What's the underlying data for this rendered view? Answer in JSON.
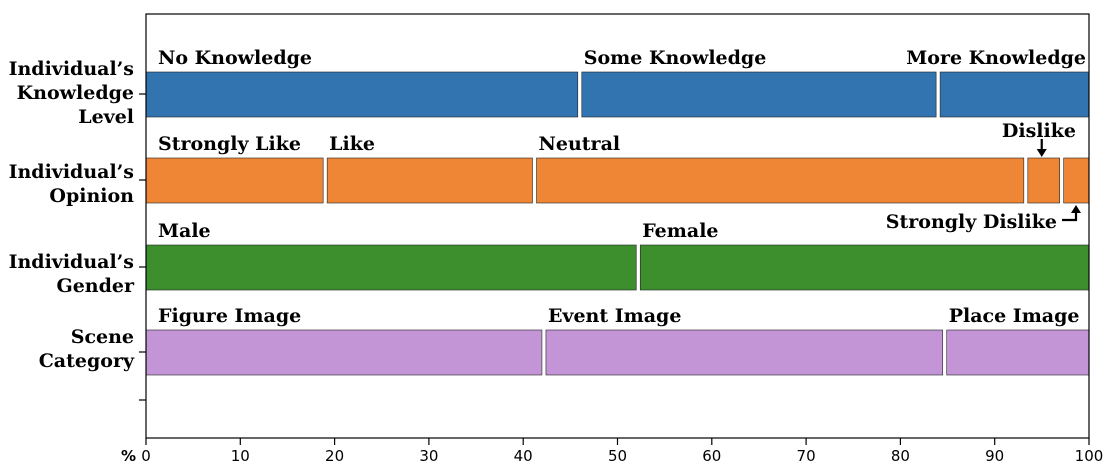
{
  "chart_data": {
    "type": "bar",
    "orientation": "horizontal-stacked",
    "xlabel": "%",
    "xlim": [
      0,
      100
    ],
    "xticks": [
      "0",
      "10",
      "20",
      "30",
      "40",
      "50",
      "60",
      "70",
      "80",
      "90",
      "100"
    ],
    "grid": false,
    "rows": [
      {
        "label_lines": [
          "Individual’s",
          "Knowledge",
          "Level"
        ],
        "color": "#3274b0",
        "segments": [
          {
            "name": "No Knowledge",
            "value": 46
          },
          {
            "name": "Some Knowledge",
            "value": 38
          },
          {
            "name": "More Knowledge",
            "value": 16
          }
        ]
      },
      {
        "label_lines": [
          "Individual’s",
          "Opinion"
        ],
        "color": "#ef8636",
        "segments": [
          {
            "name": "Strongly Like",
            "value": 19
          },
          {
            "name": "Like",
            "value": 22.2
          },
          {
            "name": "Neutral",
            "value": 52.1
          },
          {
            "name": "Dislike",
            "value": 3.8
          },
          {
            "name": "Strongly Dislike",
            "value": 2.9
          }
        ]
      },
      {
        "label_lines": [
          "Individual’s",
          "Gender"
        ],
        "color": "#3d8f2d",
        "segments": [
          {
            "name": "Male",
            "value": 52.2
          },
          {
            "name": "Female",
            "value": 47.8
          }
        ]
      },
      {
        "label_lines": [
          "Scene",
          "Category"
        ],
        "color": "#c394d6",
        "segments": [
          {
            "name": "Figure Image",
            "value": 42.2
          },
          {
            "name": "Event Image",
            "value": 42.5
          },
          {
            "name": "Place Image",
            "value": 15.3
          }
        ]
      }
    ]
  }
}
